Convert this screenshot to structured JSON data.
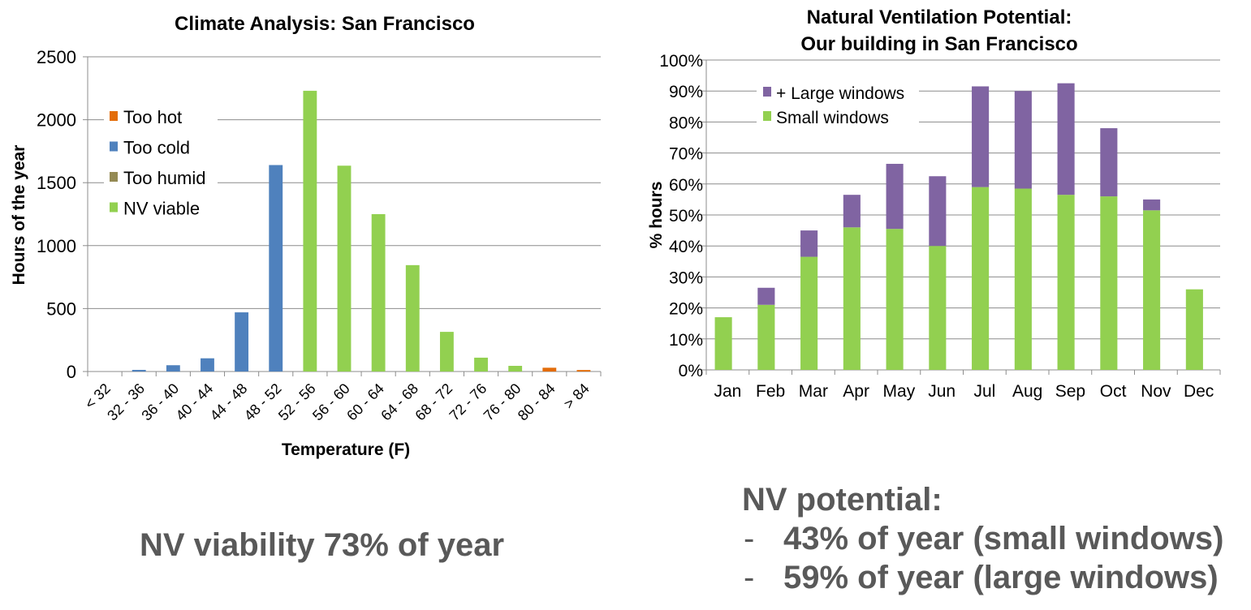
{
  "chart_data": [
    {
      "type": "bar",
      "title": "Climate Analysis: San Francisco",
      "xlabel": "Temperature (F)",
      "ylabel": "Hours of the year",
      "ylim": [
        0,
        2500
      ],
      "yticks": [
        0,
        500,
        1000,
        1500,
        2000,
        2500
      ],
      "grid": true,
      "legend_placement": "top-left",
      "categories": [
        "< 32",
        "32 - 36",
        "36 - 40",
        "40 - 44",
        "44 - 48",
        "48 - 52",
        "52 - 56",
        "56 - 60",
        "60 - 64",
        "64 - 68",
        "68 - 72",
        "72 - 76",
        "76 - 80",
        "80 - 84",
        "> 84"
      ],
      "series": [
        {
          "name": "Too hot",
          "color": "#E36C09",
          "values": [
            0,
            0,
            0,
            0,
            0,
            0,
            0,
            0,
            0,
            0,
            0,
            0,
            0,
            30,
            12
          ]
        },
        {
          "name": "Too cold",
          "color": "#4F81BD",
          "values": [
            0,
            13,
            50,
            105,
            470,
            1640,
            0,
            0,
            0,
            0,
            0,
            0,
            0,
            0,
            0
          ]
        },
        {
          "name": "Too humid",
          "color": "#948A54",
          "values": [
            0,
            0,
            0,
            0,
            0,
            0,
            0,
            0,
            0,
            0,
            0,
            0,
            0,
            0,
            0
          ]
        },
        {
          "name": "NV viable",
          "color": "#92D050",
          "values": [
            0,
            0,
            0,
            0,
            0,
            0,
            2230,
            1635,
            1250,
            845,
            315,
            110,
            45,
            0,
            0
          ]
        }
      ]
    },
    {
      "type": "bar",
      "stacked": true,
      "title": "Natural Ventilation Potential:",
      "subtitle": "Our building in San Francisco",
      "xlabel": "",
      "ylabel": "% hours",
      "ylim": [
        0,
        100
      ],
      "yticks": [
        "0%",
        "10%",
        "20%",
        "30%",
        "40%",
        "50%",
        "60%",
        "70%",
        "80%",
        "90%",
        "100%"
      ],
      "grid": true,
      "legend_placement": "top-left",
      "categories": [
        "Jan",
        "Feb",
        "Mar",
        "Apr",
        "May",
        "Jun",
        "Jul",
        "Aug",
        "Sep",
        "Oct",
        "Nov",
        "Dec"
      ],
      "series": [
        {
          "name": "Small windows",
          "color": "#92D050",
          "values": [
            17,
            21,
            36.5,
            46,
            45.5,
            40,
            59,
            58.5,
            56.5,
            56,
            51.5,
            26
          ]
        },
        {
          "name": "+ Large windows",
          "color": "#8064A2",
          "values": [
            0,
            5.5,
            8.5,
            10.5,
            21,
            22.5,
            32.5,
            31.5,
            36,
            22,
            3.5,
            0
          ]
        }
      ]
    }
  ],
  "summary_left": "NV viability 73% of year",
  "summary_right": {
    "heading": "NV potential:",
    "bullet": "-",
    "items": [
      "43% of year (small windows)",
      "59% of year (large windows)"
    ]
  }
}
